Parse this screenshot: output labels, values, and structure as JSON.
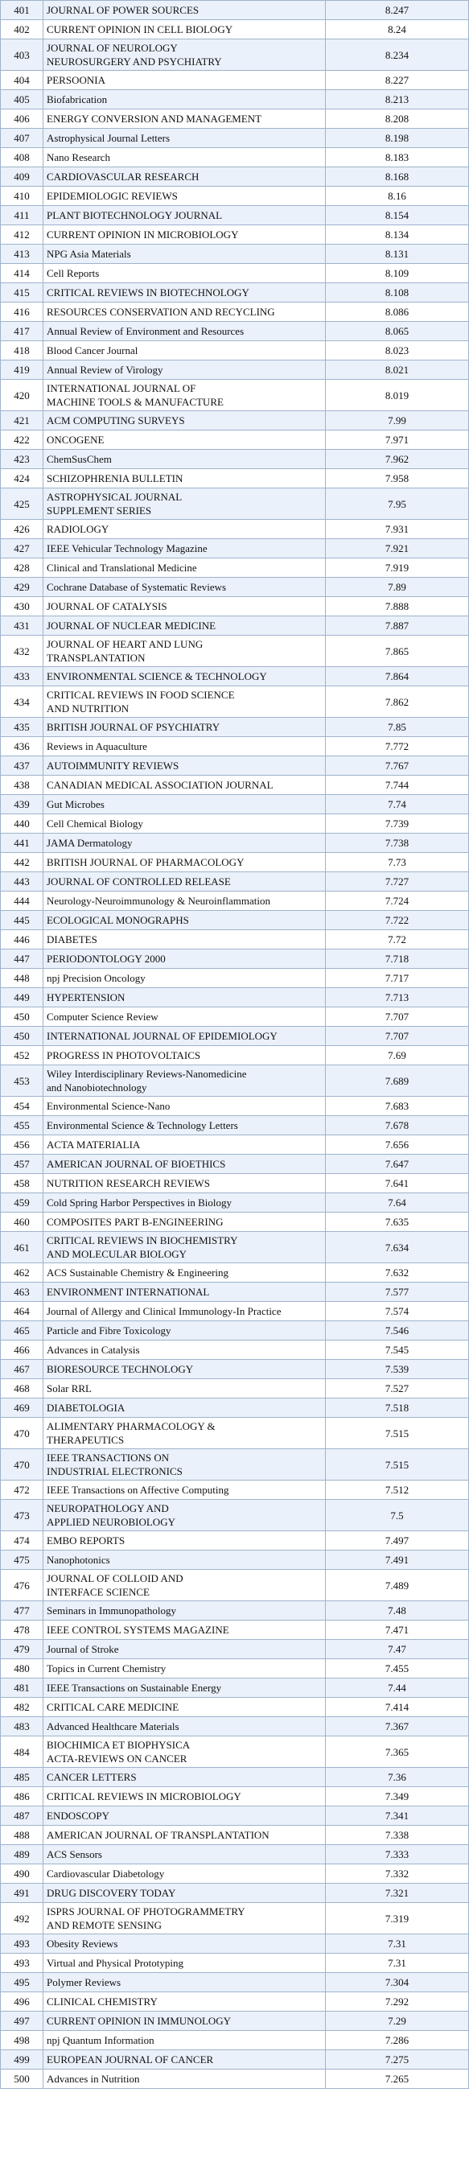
{
  "table": {
    "rows": [
      [
        401,
        [
          "JOURNAL OF POWER SOURCES"
        ],
        8.247
      ],
      [
        402,
        [
          "CURRENT OPINION IN CELL BIOLOGY"
        ],
        8.24
      ],
      [
        403,
        [
          "JOURNAL OF NEUROLOGY",
          "NEUROSURGERY AND PSYCHIATRY"
        ],
        8.234
      ],
      [
        404,
        [
          "PERSOONIA"
        ],
        8.227
      ],
      [
        405,
        [
          "Biofabrication"
        ],
        8.213
      ],
      [
        406,
        [
          "ENERGY CONVERSION AND MANAGEMENT"
        ],
        8.208
      ],
      [
        407,
        [
          "Astrophysical Journal Letters"
        ],
        8.198
      ],
      [
        408,
        [
          "Nano Research"
        ],
        8.183
      ],
      [
        409,
        [
          "CARDIOVASCULAR RESEARCH"
        ],
        8.168
      ],
      [
        410,
        [
          "EPIDEMIOLOGIC REVIEWS"
        ],
        8.16
      ],
      [
        411,
        [
          "PLANT BIOTECHNOLOGY JOURNAL"
        ],
        8.154
      ],
      [
        412,
        [
          "CURRENT OPINION IN MICROBIOLOGY"
        ],
        8.134
      ],
      [
        413,
        [
          "NPG Asia Materials"
        ],
        8.131
      ],
      [
        414,
        [
          "Cell Reports"
        ],
        8.109
      ],
      [
        415,
        [
          "CRITICAL REVIEWS IN BIOTECHNOLOGY"
        ],
        8.108
      ],
      [
        416,
        [
          "RESOURCES CONSERVATION AND RECYCLING"
        ],
        8.086
      ],
      [
        417,
        [
          "Annual Review of Environment and Resources"
        ],
        8.065
      ],
      [
        418,
        [
          "Blood Cancer Journal"
        ],
        8.023
      ],
      [
        419,
        [
          "Annual Review of Virology"
        ],
        8.021
      ],
      [
        420,
        [
          "INTERNATIONAL JOURNAL OF",
          "MACHINE TOOLS & MANUFACTURE"
        ],
        8.019
      ],
      [
        421,
        [
          "ACM COMPUTING SURVEYS"
        ],
        7.99
      ],
      [
        422,
        [
          "ONCOGENE"
        ],
        7.971
      ],
      [
        423,
        [
          "ChemSusChem"
        ],
        7.962
      ],
      [
        424,
        [
          "SCHIZOPHRENIA BULLETIN"
        ],
        7.958
      ],
      [
        425,
        [
          "ASTROPHYSICAL JOURNAL",
          "SUPPLEMENT SERIES"
        ],
        7.95
      ],
      [
        426,
        [
          "RADIOLOGY"
        ],
        7.931
      ],
      [
        427,
        [
          "IEEE Vehicular Technology Magazine"
        ],
        7.921
      ],
      [
        428,
        [
          "Clinical and Translational Medicine"
        ],
        7.919
      ],
      [
        429,
        [
          "Cochrane Database of Systematic Reviews"
        ],
        7.89
      ],
      [
        430,
        [
          "JOURNAL OF CATALYSIS"
        ],
        7.888
      ],
      [
        431,
        [
          "JOURNAL OF NUCLEAR MEDICINE"
        ],
        7.887
      ],
      [
        432,
        [
          "JOURNAL OF HEART AND LUNG",
          "TRANSPLANTATION"
        ],
        7.865
      ],
      [
        433,
        [
          "ENVIRONMENTAL SCIENCE & TECHNOLOGY"
        ],
        7.864
      ],
      [
        434,
        [
          "CRITICAL REVIEWS IN FOOD SCIENCE",
          "AND NUTRITION"
        ],
        7.862
      ],
      [
        435,
        [
          "BRITISH JOURNAL OF PSYCHIATRY"
        ],
        7.85
      ],
      [
        436,
        [
          "Reviews in Aquaculture"
        ],
        7.772
      ],
      [
        437,
        [
          "AUTOIMMUNITY REVIEWS"
        ],
        7.767
      ],
      [
        438,
        [
          "CANADIAN MEDICAL ASSOCIATION JOURNAL"
        ],
        7.744
      ],
      [
        439,
        [
          "Gut Microbes"
        ],
        7.74
      ],
      [
        440,
        [
          "Cell Chemical Biology"
        ],
        7.739
      ],
      [
        441,
        [
          "JAMA Dermatology"
        ],
        7.738
      ],
      [
        442,
        [
          "BRITISH JOURNAL OF PHARMACOLOGY"
        ],
        7.73
      ],
      [
        443,
        [
          "JOURNAL OF CONTROLLED RELEASE"
        ],
        7.727
      ],
      [
        444,
        [
          "Neurology-Neuroimmunology & Neuroinflammation"
        ],
        7.724
      ],
      [
        445,
        [
          "ECOLOGICAL MONOGRAPHS"
        ],
        7.722
      ],
      [
        446,
        [
          "DIABETES"
        ],
        7.72
      ],
      [
        447,
        [
          "PERIODONTOLOGY 2000"
        ],
        7.718
      ],
      [
        448,
        [
          "npj Precision Oncology"
        ],
        7.717
      ],
      [
        449,
        [
          "HYPERTENSION"
        ],
        7.713
      ],
      [
        450,
        [
          "Computer Science Review"
        ],
        7.707
      ],
      [
        450,
        [
          "INTERNATIONAL JOURNAL OF EPIDEMIOLOGY"
        ],
        7.707
      ],
      [
        452,
        [
          "PROGRESS IN PHOTOVOLTAICS"
        ],
        7.69
      ],
      [
        453,
        [
          "Wiley Interdisciplinary Reviews-Nanomedicine",
          "and Nanobiotechnology"
        ],
        7.689
      ],
      [
        454,
        [
          "Environmental Science-Nano"
        ],
        7.683
      ],
      [
        455,
        [
          "Environmental Science & Technology Letters"
        ],
        7.678
      ],
      [
        456,
        [
          "ACTA MATERIALIA"
        ],
        7.656
      ],
      [
        457,
        [
          "AMERICAN JOURNAL OF BIOETHICS"
        ],
        7.647
      ],
      [
        458,
        [
          "NUTRITION RESEARCH REVIEWS"
        ],
        7.641
      ],
      [
        459,
        [
          "Cold Spring Harbor Perspectives in Biology"
        ],
        7.64
      ],
      [
        460,
        [
          "COMPOSITES PART B-ENGINEERING"
        ],
        7.635
      ],
      [
        461,
        [
          "CRITICAL REVIEWS IN BIOCHEMISTRY",
          "AND MOLECULAR BIOLOGY"
        ],
        7.634
      ],
      [
        462,
        [
          "ACS Sustainable Chemistry & Engineering"
        ],
        7.632
      ],
      [
        463,
        [
          "ENVIRONMENT INTERNATIONAL"
        ],
        7.577
      ],
      [
        464,
        [
          "Journal of Allergy and Clinical Immunology-In Practice"
        ],
        7.574
      ],
      [
        465,
        [
          "Particle and Fibre Toxicology"
        ],
        7.546
      ],
      [
        466,
        [
          "Advances in Catalysis"
        ],
        7.545
      ],
      [
        467,
        [
          "BIORESOURCE TECHNOLOGY"
        ],
        7.539
      ],
      [
        468,
        [
          "Solar RRL"
        ],
        7.527
      ],
      [
        469,
        [
          "DIABETOLOGIA"
        ],
        7.518
      ],
      [
        470,
        [
          "ALIMENTARY PHARMACOLOGY &",
          "THERAPEUTICS"
        ],
        7.515
      ],
      [
        470,
        [
          "IEEE TRANSACTIONS ON",
          "INDUSTRIAL ELECTRONICS"
        ],
        7.515
      ],
      [
        472,
        [
          "IEEE Transactions on Affective Computing"
        ],
        7.512
      ],
      [
        473,
        [
          "NEUROPATHOLOGY AND",
          "APPLIED NEUROBIOLOGY"
        ],
        7.5
      ],
      [
        474,
        [
          "EMBO REPORTS"
        ],
        7.497
      ],
      [
        475,
        [
          "Nanophotonics"
        ],
        7.491
      ],
      [
        476,
        [
          "JOURNAL OF COLLOID AND",
          "INTERFACE SCIENCE"
        ],
        7.489
      ],
      [
        477,
        [
          "Seminars in Immunopathology"
        ],
        7.48
      ],
      [
        478,
        [
          "IEEE CONTROL SYSTEMS MAGAZINE"
        ],
        7.471
      ],
      [
        479,
        [
          "Journal of Stroke"
        ],
        7.47
      ],
      [
        480,
        [
          "Topics in Current Chemistry"
        ],
        7.455
      ],
      [
        481,
        [
          "IEEE Transactions on Sustainable Energy"
        ],
        7.44
      ],
      [
        482,
        [
          "CRITICAL CARE MEDICINE"
        ],
        7.414
      ],
      [
        483,
        [
          "Advanced Healthcare Materials"
        ],
        7.367
      ],
      [
        484,
        [
          "BIOCHIMICA ET BIOPHYSICA",
          "ACTA-REVIEWS ON CANCER"
        ],
        7.365
      ],
      [
        485,
        [
          "CANCER LETTERS"
        ],
        7.36
      ],
      [
        486,
        [
          "CRITICAL REVIEWS IN MICROBIOLOGY"
        ],
        7.349
      ],
      [
        487,
        [
          "ENDOSCOPY"
        ],
        7.341
      ],
      [
        488,
        [
          "AMERICAN JOURNAL OF TRANSPLANTATION"
        ],
        7.338
      ],
      [
        489,
        [
          "ACS Sensors"
        ],
        7.333
      ],
      [
        490,
        [
          "Cardiovascular Diabetology"
        ],
        7.332
      ],
      [
        491,
        [
          "DRUG DISCOVERY TODAY"
        ],
        7.321
      ],
      [
        492,
        [
          "ISPRS JOURNAL OF PHOTOGRAMMETRY",
          "AND REMOTE SENSING"
        ],
        7.319
      ],
      [
        493,
        [
          "Obesity Reviews"
        ],
        7.31
      ],
      [
        493,
        [
          "Virtual and Physical Prototyping"
        ],
        7.31
      ],
      [
        495,
        [
          "Polymer Reviews"
        ],
        7.304
      ],
      [
        496,
        [
          "CLINICAL CHEMISTRY"
        ],
        7.292
      ],
      [
        497,
        [
          "CURRENT OPINION IN IMMUNOLOGY"
        ],
        7.29
      ],
      [
        498,
        [
          "npj Quantum Information"
        ],
        7.286
      ],
      [
        499,
        [
          "EUROPEAN JOURNAL OF CANCER"
        ],
        7.275
      ],
      [
        500,
        [
          "Advances in Nutrition"
        ],
        7.265
      ]
    ]
  }
}
